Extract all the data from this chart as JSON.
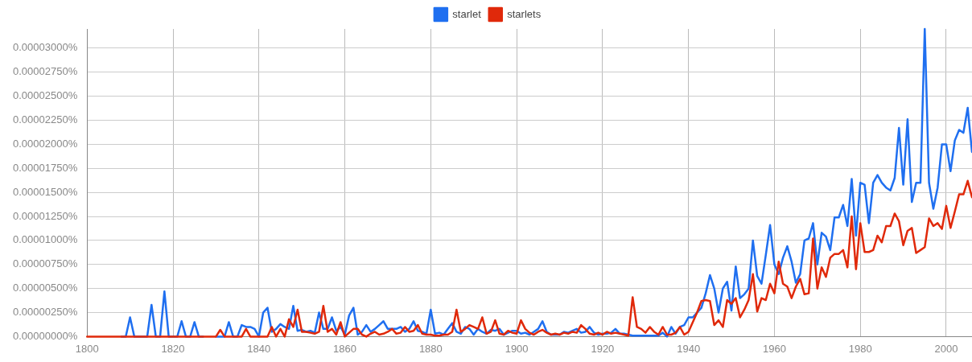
{
  "chart_data": {
    "type": "line",
    "legend": "top",
    "grid": true,
    "marker": "none",
    "line_style": "solid",
    "xlim": [
      1800,
      2006
    ],
    "xticks": [
      1800,
      1820,
      1840,
      1860,
      1880,
      1900,
      1920,
      1940,
      1960,
      1980,
      2000
    ],
    "ylim": [
      0,
      3.2e-05
    ],
    "yticks": [
      {
        "value": 0,
        "label": "0.00000000%"
      },
      {
        "value": 2.5e-06,
        "label": "0.00000250%"
      },
      {
        "value": 5e-06,
        "label": "0.00000500%"
      },
      {
        "value": 7.5e-06,
        "label": "0.00000750%"
      },
      {
        "value": 1e-05,
        "label": "0.00001000%"
      },
      {
        "value": 1.25e-05,
        "label": "0.00001250%"
      },
      {
        "value": 1.5e-05,
        "label": "0.00001500%"
      },
      {
        "value": 1.75e-05,
        "label": "0.00001750%"
      },
      {
        "value": 2e-05,
        "label": "0.00002000%"
      },
      {
        "value": 2.25e-05,
        "label": "0.00002250%"
      },
      {
        "value": 2.5e-05,
        "label": "0.00002500%"
      },
      {
        "value": 2.75e-05,
        "label": "0.00002750%"
      },
      {
        "value": 3e-05,
        "label": "0.00003000%"
      }
    ],
    "x": [
      1800,
      1801,
      1802,
      1803,
      1804,
      1805,
      1806,
      1807,
      1808,
      1809,
      1810,
      1811,
      1812,
      1813,
      1814,
      1815,
      1816,
      1817,
      1818,
      1819,
      1820,
      1821,
      1822,
      1823,
      1824,
      1825,
      1826,
      1827,
      1828,
      1829,
      1830,
      1831,
      1832,
      1833,
      1834,
      1835,
      1836,
      1837,
      1838,
      1839,
      1840,
      1841,
      1842,
      1843,
      1844,
      1845,
      1846,
      1847,
      1848,
      1849,
      1850,
      1851,
      1852,
      1853,
      1854,
      1855,
      1856,
      1857,
      1858,
      1859,
      1860,
      1861,
      1862,
      1863,
      1864,
      1865,
      1866,
      1867,
      1868,
      1869,
      1870,
      1871,
      1872,
      1873,
      1874,
      1875,
      1876,
      1877,
      1878,
      1879,
      1880,
      1881,
      1882,
      1883,
      1884,
      1885,
      1886,
      1887,
      1888,
      1889,
      1890,
      1891,
      1892,
      1893,
      1894,
      1895,
      1896,
      1897,
      1898,
      1899,
      1900,
      1901,
      1902,
      1903,
      1904,
      1905,
      1906,
      1907,
      1908,
      1909,
      1910,
      1911,
      1912,
      1913,
      1914,
      1915,
      1916,
      1917,
      1918,
      1919,
      1920,
      1921,
      1922,
      1923,
      1924,
      1925,
      1926,
      1927,
      1928,
      1929,
      1930,
      1931,
      1932,
      1933,
      1934,
      1935,
      1936,
      1937,
      1938,
      1939,
      1940,
      1941,
      1942,
      1943,
      1944,
      1945,
      1946,
      1947,
      1948,
      1949,
      1950,
      1951,
      1952,
      1953,
      1954,
      1955,
      1956,
      1957,
      1958,
      1959,
      1960,
      1961,
      1962,
      1963,
      1964,
      1965,
      1966,
      1967,
      1968,
      1969,
      1970,
      1971,
      1972,
      1973,
      1974,
      1975,
      1976,
      1977,
      1978,
      1979,
      1980,
      1981,
      1982,
      1983,
      1984,
      1985,
      1986,
      1987,
      1988,
      1989,
      1990,
      1991,
      1992,
      1993,
      1994,
      1995,
      1996,
      1997,
      1998,
      1999,
      2000,
      2001,
      2002,
      2003,
      2004,
      2005,
      2006
    ],
    "series": [
      {
        "name": "starlet",
        "color": "#1f6ff0",
        "values": [
          null,
          null,
          null,
          null,
          null,
          null,
          null,
          null,
          0,
          0,
          2e-06,
          0,
          0,
          0,
          0,
          3.3e-06,
          0,
          0,
          4.7e-06,
          0,
          0,
          0,
          1.6e-06,
          0,
          0,
          1.5e-06,
          0,
          0,
          null,
          null,
          0,
          0,
          0,
          1.5e-06,
          0,
          0,
          1.2e-06,
          1e-06,
          1e-06,
          8e-07,
          0,
          2.5e-06,
          3e-06,
          5e-07,
          8e-07,
          1.3e-06,
          1e-06,
          8e-07,
          3.2e-06,
          6e-07,
          7e-07,
          5e-07,
          6e-07,
          4e-07,
          2.5e-06,
          8e-07,
          8e-07,
          2e-06,
          6e-07,
          1e-06,
          2e-07,
          2.2e-06,
          3e-06,
          2e-07,
          5e-07,
          1.2e-06,
          5e-07,
          8e-07,
          1.2e-06,
          1.6e-06,
          8e-07,
          8e-07,
          8e-07,
          1e-06,
          5e-07,
          8e-07,
          1.6e-06,
          6e-07,
          5e-07,
          3e-07,
          2.8e-06,
          3e-07,
          4e-07,
          2e-07,
          8e-07,
          1.4e-06,
          5e-07,
          3e-07,
          1e-06,
          8e-07,
          2e-07,
          8e-07,
          5e-07,
          3e-07,
          7e-07,
          6e-07,
          8e-07,
          2e-07,
          4e-07,
          6e-07,
          6e-07,
          3e-07,
          4e-07,
          2e-07,
          5e-07,
          8e-07,
          1.6e-06,
          5e-07,
          2e-07,
          2e-07,
          2e-07,
          5e-07,
          4e-07,
          6e-07,
          8e-07,
          4e-07,
          5e-07,
          1e-06,
          4e-07,
          2e-07,
          3e-07,
          3e-07,
          4e-07,
          8e-07,
          3e-07,
          3e-07,
          2e-07,
          1e-07,
          1e-07,
          1e-07,
          1e-07,
          1e-07,
          1e-07,
          1e-07,
          4e-07,
          0,
          1e-06,
          3e-07,
          1e-06,
          1.2e-06,
          2e-06,
          2e-06,
          2.5e-06,
          3e-06,
          4.5e-06,
          6.4e-06,
          5e-06,
          2.5e-06,
          5e-06,
          5.7e-06,
          2.7e-06,
          7.3e-06,
          4e-06,
          4.4e-06,
          5e-06,
          1e-05,
          6.3e-06,
          5.5e-06,
          8.5e-06,
          1.16e-05,
          7.5e-06,
          6.5e-06,
          8.2e-06,
          9.4e-06,
          7.8e-06,
          5.6e-06,
          6.5e-06,
          1e-05,
          1.02e-05,
          1.18e-05,
          7.5e-06,
          1.08e-05,
          1.04e-05,
          9e-06,
          1.24e-05,
          1.24e-05,
          1.37e-05,
          1.15e-05,
          1.64e-05,
          1.05e-05,
          1.6e-05,
          1.58e-05,
          1.18e-05,
          1.6e-05,
          1.68e-05,
          1.6e-05,
          1.55e-05,
          1.52e-05,
          1.65e-05,
          2.17e-05,
          1.58e-05,
          2.26e-05,
          1.4e-05,
          1.6e-05,
          1.6e-05,
          3.2e-05,
          1.6e-05,
          1.33e-05,
          1.55e-05,
          2e-05,
          2e-05,
          1.72e-05,
          2.04e-05,
          2.15e-05,
          2.12e-05,
          2.38e-05,
          1.92e-05
        ]
      },
      {
        "name": "starlets",
        "color": "#e0290a",
        "values": [
          0,
          0,
          0,
          0,
          0,
          0,
          0,
          0,
          0,
          0,
          0,
          0,
          0,
          0,
          0,
          0,
          0,
          0,
          0,
          0,
          0,
          0,
          0,
          0,
          0,
          0,
          0,
          0,
          0,
          0,
          0,
          7e-07,
          0,
          0,
          0,
          0,
          0,
          8e-07,
          0,
          0,
          0,
          0,
          0,
          1e-06,
          0,
          8e-07,
          0,
          1.8e-06,
          1e-06,
          2.8e-06,
          5e-07,
          5e-07,
          4e-07,
          3e-07,
          5e-07,
          3.2e-06,
          5e-07,
          8e-07,
          2e-07,
          1.5e-06,
          0,
          4e-07,
          8e-07,
          8e-07,
          2e-07,
          0,
          3e-07,
          5e-07,
          2e-07,
          3e-07,
          5e-07,
          8e-07,
          3e-07,
          4e-07,
          1e-06,
          5e-07,
          6e-07,
          1.2e-06,
          3e-07,
          2e-07,
          2e-07,
          1e-07,
          1e-07,
          2e-07,
          2e-07,
          5e-07,
          2.8e-06,
          5e-07,
          8e-07,
          1.2e-06,
          1e-06,
          8e-07,
          2e-06,
          3e-07,
          5e-07,
          1.7e-06,
          3e-07,
          2e-07,
          6e-07,
          4e-07,
          3e-07,
          1.7e-06,
          8e-07,
          4e-07,
          2e-07,
          5e-07,
          7e-07,
          4e-07,
          2e-07,
          3e-07,
          2e-07,
          4e-07,
          3e-07,
          5e-07,
          4e-07,
          1.2e-06,
          8e-07,
          3e-07,
          2e-07,
          4e-07,
          2e-07,
          5e-07,
          3e-07,
          4e-07,
          3e-07,
          2e-07,
          1e-07,
          4.1e-06,
          1e-06,
          8e-07,
          4e-07,
          1e-06,
          5e-07,
          2e-07,
          1e-06,
          2e-07,
          2e-07,
          4e-07,
          1e-06,
          2e-07,
          5e-07,
          1.5e-06,
          2.5e-06,
          3.7e-06,
          3.8e-06,
          3.7e-06,
          1.2e-06,
          1.7e-06,
          1e-06,
          3.8e-06,
          3.4e-06,
          4e-06,
          2e-06,
          2.8e-06,
          3.8e-06,
          6.5e-06,
          2.6e-06,
          4e-06,
          3.8e-06,
          5.5e-06,
          4.5e-06,
          7.8e-06,
          5.5e-06,
          5.2e-06,
          4e-06,
          5.2e-06,
          6e-06,
          4.4e-06,
          4.5e-06,
          1.02e-05,
          5e-06,
          7.2e-06,
          6.2e-06,
          8.2e-06,
          8.6e-06,
          8.6e-06,
          9e-06,
          7.2e-06,
          1.25e-05,
          7e-06,
          1.18e-05,
          8.8e-06,
          8.8e-06,
          9e-06,
          1.05e-05,
          9.8e-06,
          1.15e-05,
          1.15e-05,
          1.28e-05,
          1.2e-05,
          9.5e-06,
          1.1e-05,
          1.13e-05,
          8.7e-06,
          9e-06,
          9.3e-06,
          1.23e-05,
          1.15e-05,
          1.18e-05,
          1.12e-05,
          1.36e-05,
          1.13e-05,
          1.3e-05,
          1.48e-05,
          1.48e-05,
          1.62e-05,
          1.45e-05
        ]
      }
    ]
  }
}
